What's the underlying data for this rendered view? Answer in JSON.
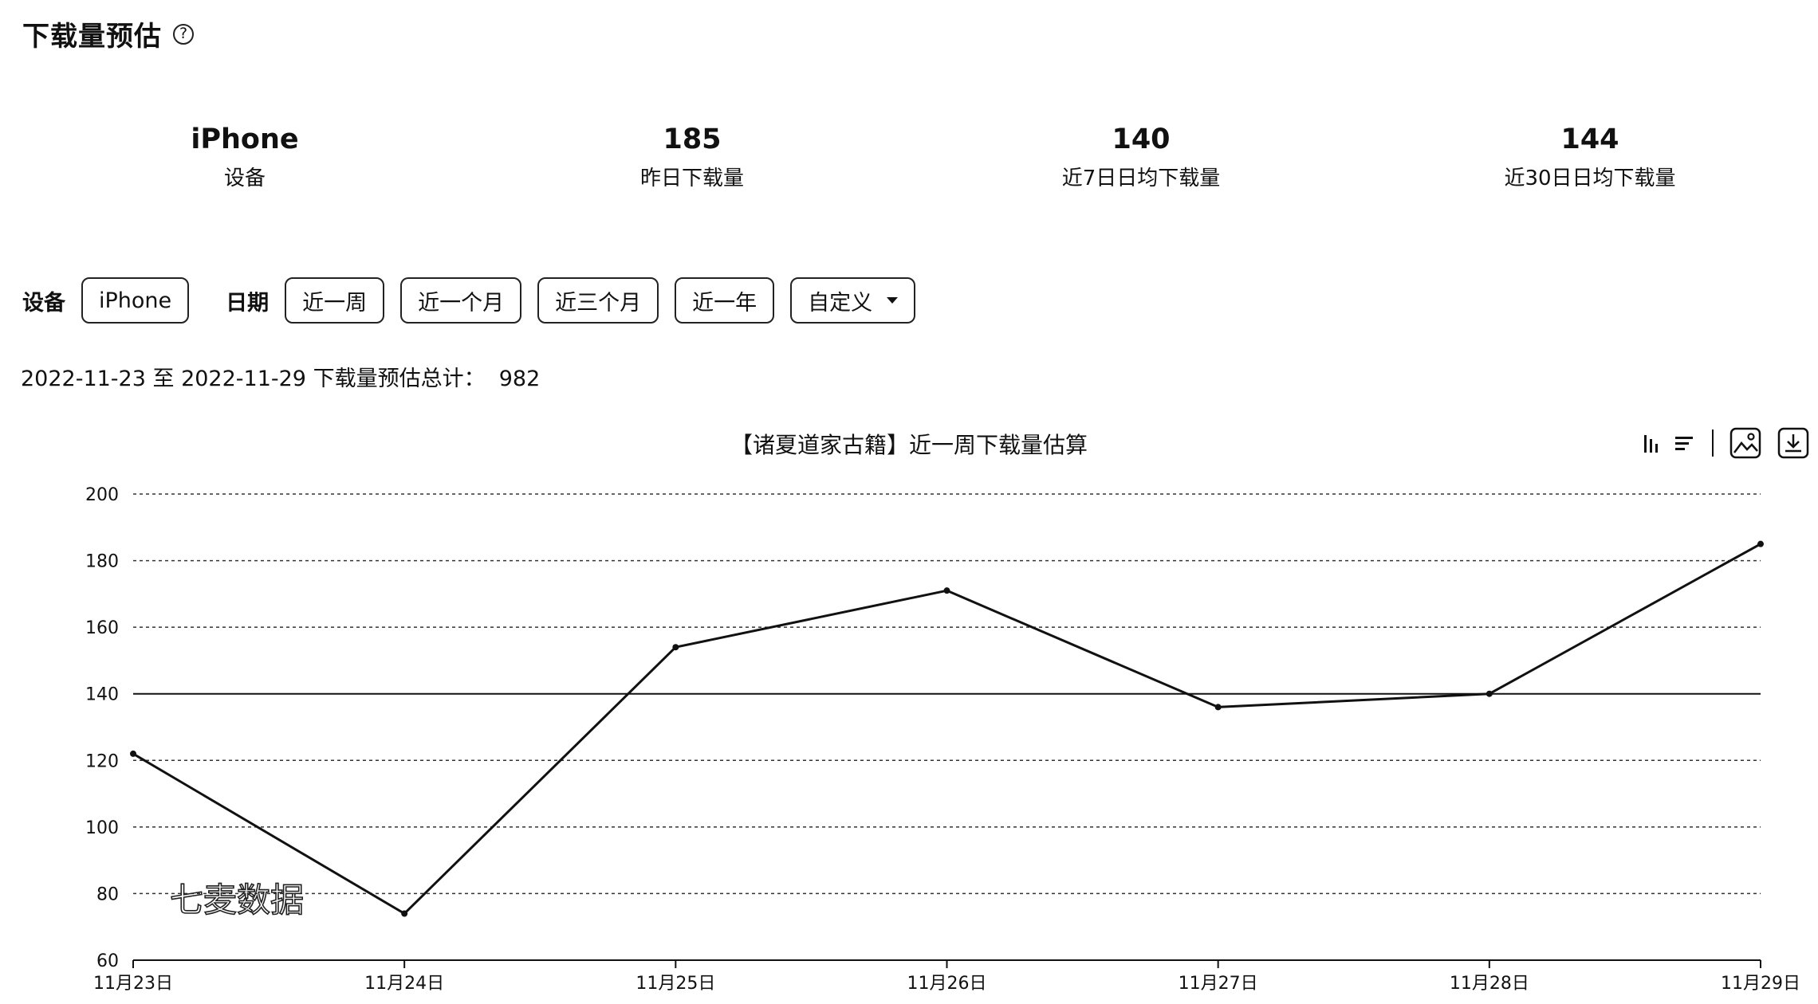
{
  "header": {
    "title": "下载量预估",
    "help_glyph": "?"
  },
  "stats": [
    {
      "value": "iPhone",
      "label": "设备"
    },
    {
      "value": "185",
      "label": "昨日下载量"
    },
    {
      "value": "140",
      "label": "近7日日均下载量"
    },
    {
      "value": "144",
      "label": "近30日日均下载量"
    }
  ],
  "filters": {
    "device_label": "设备",
    "device_value": "iPhone",
    "date_label": "日期",
    "date_options": [
      "近一周",
      "近一个月",
      "近三个月",
      "近一年"
    ],
    "custom_label": "自定义"
  },
  "summary": {
    "text": "2022-11-23 至 2022-11-29 下载量预估总计：  982"
  },
  "toolbar": {
    "icons": [
      "bar-chart-icon",
      "list-icon",
      "image-icon",
      "download-icon"
    ]
  },
  "chart_data": {
    "type": "line",
    "title": "【诸夏道家古籍】近一周下载量估算",
    "categories": [
      "11月23日",
      "11月24日",
      "11月25日",
      "11月26日",
      "11月27日",
      "11月28日",
      "11月29日"
    ],
    "series": [
      {
        "values": [
          122,
          74,
          154,
          171,
          136,
          140,
          185
        ]
      }
    ],
    "ylim": [
      60,
      200
    ],
    "yticks": [
      60,
      80,
      100,
      120,
      140,
      160,
      180,
      200
    ],
    "reference_line": 140,
    "grid": true,
    "watermark": "七麦数据",
    "line_color": "#111111"
  }
}
